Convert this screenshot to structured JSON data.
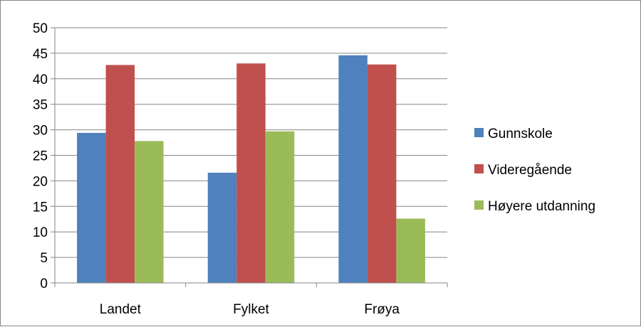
{
  "chart_data": {
    "type": "bar",
    "categories": [
      "Landet",
      "Fylket",
      "Frøya"
    ],
    "series": [
      {
        "name": "Gunnskole",
        "values": [
          29.4,
          21.6,
          44.6
        ],
        "color": "#4F81BD"
      },
      {
        "name": "Videregående",
        "values": [
          42.7,
          43.0,
          42.8
        ],
        "color": "#C0504D"
      },
      {
        "name": "Høyere utdanning",
        "values": [
          27.8,
          29.7,
          12.6
        ],
        "color": "#9BBB59"
      }
    ],
    "yticks": [
      "0",
      "5",
      "10",
      "15",
      "20",
      "25",
      "30",
      "35",
      "40",
      "45",
      "50"
    ],
    "ylim": [
      0,
      50
    ],
    "grid": true,
    "legend_position": "right"
  }
}
